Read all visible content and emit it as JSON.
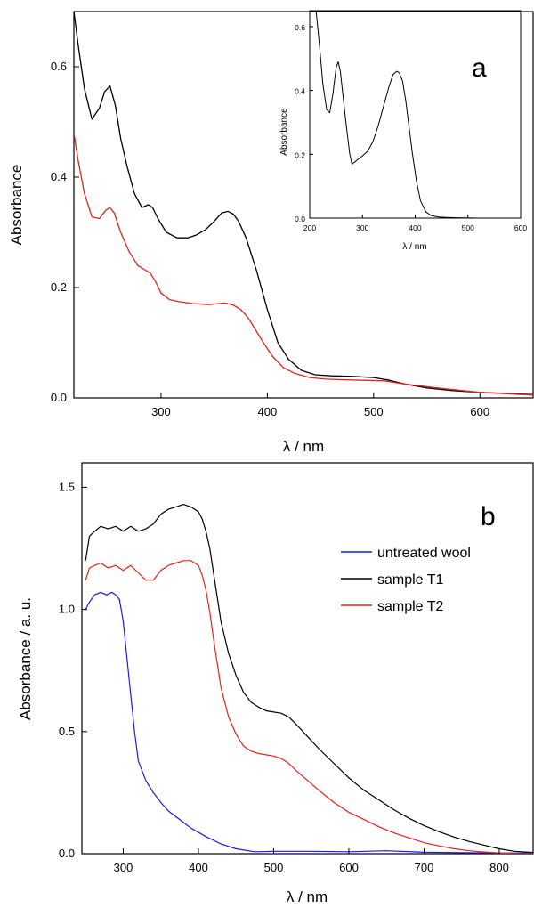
{
  "chart_data": [
    {
      "panel": "a",
      "type": "line",
      "xlabel": "λ / nm",
      "ylabel": "Absorbance",
      "xlim": [
        218,
        650
      ],
      "ylim": [
        0,
        0.7
      ],
      "xticks": [
        300,
        400,
        500,
        600
      ],
      "yticks": [
        0.0,
        0.2,
        0.4,
        0.6
      ],
      "xtick_labels": [
        "300",
        "400",
        "500",
        "600"
      ],
      "ytick_labels": [
        "0.0",
        "0.2",
        "0.4",
        "0.6"
      ],
      "series": [
        {
          "color": "#000000",
          "x": [
            218,
            222,
            228,
            235,
            242,
            247,
            252,
            257,
            262,
            268,
            275,
            282,
            288,
            292,
            297,
            305,
            315,
            325,
            333,
            342,
            350,
            357,
            363,
            368,
            373,
            380,
            390,
            400,
            410,
            420,
            432,
            445,
            460,
            480,
            500,
            515,
            530,
            550,
            575,
            600,
            625,
            650
          ],
          "y": [
            0.7,
            0.64,
            0.56,
            0.505,
            0.525,
            0.555,
            0.565,
            0.53,
            0.47,
            0.42,
            0.37,
            0.345,
            0.35,
            0.345,
            0.325,
            0.3,
            0.29,
            0.29,
            0.295,
            0.305,
            0.32,
            0.335,
            0.338,
            0.333,
            0.32,
            0.29,
            0.23,
            0.16,
            0.1,
            0.07,
            0.05,
            0.042,
            0.04,
            0.039,
            0.037,
            0.032,
            0.025,
            0.018,
            0.013,
            0.01,
            0.008,
            0.006
          ]
        },
        {
          "color": "#e8221a",
          "x": [
            218,
            222,
            228,
            235,
            242,
            248,
            252,
            256,
            262,
            270,
            278,
            284,
            290,
            295,
            300,
            308,
            318,
            330,
            345,
            360,
            368,
            375,
            382,
            390,
            398,
            405,
            415,
            425,
            440,
            455,
            470,
            490,
            510,
            530,
            560,
            600,
            650
          ],
          "y": [
            0.48,
            0.43,
            0.37,
            0.328,
            0.325,
            0.34,
            0.345,
            0.335,
            0.3,
            0.265,
            0.24,
            0.233,
            0.226,
            0.21,
            0.19,
            0.178,
            0.174,
            0.171,
            0.169,
            0.172,
            0.168,
            0.16,
            0.145,
            0.12,
            0.095,
            0.075,
            0.055,
            0.045,
            0.037,
            0.034,
            0.033,
            0.032,
            0.031,
            0.025,
            0.018,
            0.01,
            0.005
          ]
        }
      ],
      "panel_label": "a"
    },
    {
      "panel": "a-inset",
      "type": "line",
      "xlabel": "λ / nm",
      "ylabel": "Absorbance",
      "xlim": [
        200,
        600
      ],
      "ylim": [
        0,
        0.65
      ],
      "xticks": [
        200,
        300,
        400,
        500,
        600
      ],
      "yticks": [
        0.0,
        0.2,
        0.4,
        0.6
      ],
      "xtick_labels": [
        "200",
        "300",
        "400",
        "500",
        "600"
      ],
      "ytick_labels": [
        "0.0",
        "0.2",
        "0.4",
        "0.6"
      ],
      "series": [
        {
          "color": "#000000",
          "x": [
            212,
            218,
            225,
            232,
            238,
            244,
            250,
            254,
            258,
            264,
            270,
            276,
            280,
            285,
            292,
            300,
            310,
            320,
            330,
            340,
            350,
            358,
            365,
            370,
            376,
            382,
            388,
            395,
            402,
            410,
            420,
            430,
            445,
            460,
            480,
            520,
            560,
            600
          ],
          "y": [
            0.65,
            0.55,
            0.42,
            0.34,
            0.33,
            0.39,
            0.47,
            0.49,
            0.46,
            0.37,
            0.28,
            0.2,
            0.17,
            0.175,
            0.185,
            0.195,
            0.21,
            0.24,
            0.29,
            0.35,
            0.41,
            0.45,
            0.46,
            0.455,
            0.43,
            0.37,
            0.29,
            0.2,
            0.12,
            0.055,
            0.02,
            0.008,
            0.003,
            0.002,
            0.001,
            0.0,
            0.0,
            0.0
          ]
        }
      ]
    },
    {
      "panel": "b",
      "type": "line",
      "xlabel": "λ / nm",
      "ylabel": "Absorbance / a. u.",
      "xlim": [
        245,
        845
      ],
      "ylim": [
        0,
        1.6
      ],
      "xticks": [
        300,
        400,
        500,
        600,
        700,
        800
      ],
      "yticks": [
        0.0,
        0.5,
        1.0,
        1.5
      ],
      "xtick_labels": [
        "300",
        "400",
        "500",
        "600",
        "700",
        "800"
      ],
      "ytick_labels": [
        "0.0",
        "0.5",
        "1.0",
        "1.5"
      ],
      "series": [
        {
          "name": "untreated wool",
          "color": "#1a1aee",
          "x": [
            250,
            255,
            262,
            270,
            278,
            285,
            290,
            295,
            300,
            305,
            310,
            315,
            320,
            330,
            340,
            350,
            360,
            375,
            390,
            410,
            430,
            450,
            475,
            500,
            550,
            600,
            650,
            700,
            750,
            800,
            845
          ],
          "y": [
            1.0,
            1.03,
            1.06,
            1.07,
            1.06,
            1.07,
            1.06,
            1.04,
            0.95,
            0.8,
            0.65,
            0.5,
            0.38,
            0.3,
            0.25,
            0.21,
            0.175,
            0.14,
            0.105,
            0.07,
            0.04,
            0.02,
            0.008,
            0.01,
            0.01,
            0.008,
            0.012,
            0.006,
            0.004,
            0.003,
            0.003
          ]
        },
        {
          "name": "sample T1",
          "color": "#000000",
          "x": [
            250,
            255,
            262,
            270,
            280,
            290,
            300,
            310,
            320,
            330,
            340,
            350,
            360,
            370,
            380,
            390,
            400,
            405,
            410,
            415,
            420,
            425,
            430,
            440,
            450,
            460,
            470,
            480,
            490,
            500,
            510,
            520,
            530,
            545,
            560,
            580,
            600,
            620,
            640,
            660,
            680,
            700,
            720,
            740,
            760,
            780,
            800,
            820,
            845
          ],
          "y": [
            1.2,
            1.3,
            1.32,
            1.34,
            1.33,
            1.34,
            1.32,
            1.34,
            1.32,
            1.33,
            1.35,
            1.39,
            1.41,
            1.42,
            1.43,
            1.42,
            1.4,
            1.37,
            1.32,
            1.25,
            1.15,
            1.05,
            0.95,
            0.82,
            0.73,
            0.66,
            0.62,
            0.6,
            0.585,
            0.58,
            0.575,
            0.56,
            0.53,
            0.48,
            0.43,
            0.37,
            0.31,
            0.26,
            0.22,
            0.18,
            0.145,
            0.115,
            0.09,
            0.068,
            0.05,
            0.035,
            0.02,
            0.01,
            0.005
          ]
        },
        {
          "name": "sample T2",
          "color": "#e8221a",
          "x": [
            250,
            255,
            262,
            270,
            280,
            290,
            300,
            310,
            320,
            330,
            340,
            350,
            360,
            370,
            380,
            390,
            400,
            405,
            410,
            415,
            420,
            425,
            430,
            440,
            450,
            460,
            470,
            480,
            490,
            500,
            510,
            520,
            530,
            545,
            560,
            580,
            600,
            620,
            640,
            660,
            680,
            700,
            720,
            740,
            760,
            780,
            800,
            820,
            845
          ],
          "y": [
            1.12,
            1.17,
            1.18,
            1.19,
            1.17,
            1.18,
            1.16,
            1.18,
            1.15,
            1.12,
            1.12,
            1.16,
            1.18,
            1.19,
            1.2,
            1.2,
            1.18,
            1.14,
            1.08,
            0.99,
            0.88,
            0.78,
            0.68,
            0.56,
            0.49,
            0.44,
            0.42,
            0.41,
            0.405,
            0.4,
            0.39,
            0.37,
            0.34,
            0.3,
            0.26,
            0.21,
            0.17,
            0.14,
            0.11,
            0.085,
            0.065,
            0.045,
            0.032,
            0.02,
            0.012,
            0.007,
            0.003,
            0.0,
            0.0
          ]
        }
      ],
      "panel_label": "b",
      "legend": "top-right"
    }
  ]
}
